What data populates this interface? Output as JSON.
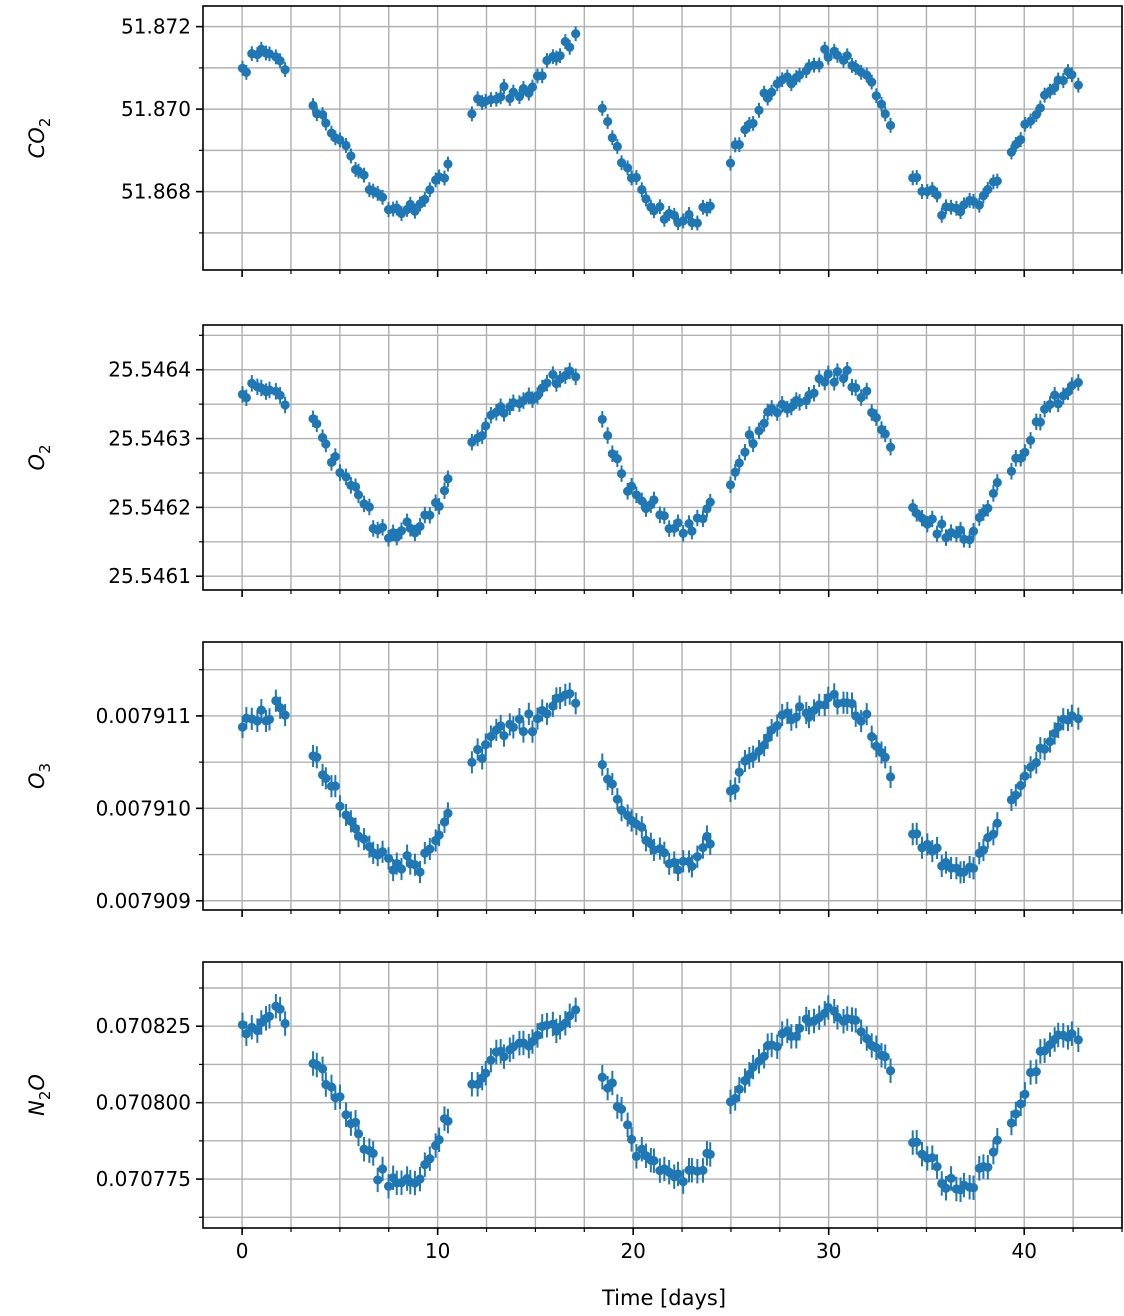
{
  "chart_data": {
    "type": "scatter",
    "style": {
      "marker_color": "#1f77b4",
      "grid": true,
      "grid_color": "#b0b0b0",
      "error_bars": true
    },
    "x_axis": {
      "label": "Time [days]",
      "range": [
        -2,
        45
      ],
      "ticks": [
        0,
        10,
        20,
        30,
        40
      ],
      "tick_labels": [
        "0",
        "10",
        "20",
        "30",
        "40"
      ],
      "shared": true
    },
    "panels": [
      {
        "name": "CO2",
        "ylabel_main": "CO",
        "ylabel_sub": "2",
        "ylabel_tail": "",
        "ylim": [
          51.8661,
          51.8725
        ],
        "yticks": [
          51.868,
          51.87,
          51.872
        ],
        "ytick_labels": [
          "51.868",
          "51.870",
          "51.872"
        ],
        "mean": 51.8696,
        "amplitude": 0.0022,
        "err": 0.00018,
        "noise": 0.00035,
        "points": [
          [
            0,
            51.8711
          ],
          [
            1,
            51.8714
          ],
          [
            2,
            51.8712
          ],
          [
            3,
            51.8705
          ],
          [
            4,
            51.8698
          ],
          [
            5,
            51.8692
          ],
          [
            6,
            51.8684
          ],
          [
            7,
            51.8678
          ],
          [
            8,
            51.8676
          ],
          [
            9,
            51.8676
          ],
          [
            10,
            51.8682
          ],
          [
            11,
            51.8692
          ],
          [
            12,
            51.87
          ],
          [
            13,
            51.8703
          ],
          [
            14,
            51.8704
          ],
          [
            15,
            51.8707
          ],
          [
            16,
            51.8714
          ],
          [
            17,
            51.8717
          ],
          [
            18,
            51.8708
          ],
          [
            19,
            51.8692
          ],
          [
            20,
            51.8682
          ],
          [
            21,
            51.8677
          ],
          [
            22,
            51.8673
          ],
          [
            23,
            51.8673
          ],
          [
            24,
            51.8678
          ],
          [
            25,
            51.8688
          ],
          [
            26,
            51.8697
          ],
          [
            27,
            51.8704
          ],
          [
            28,
            51.8707
          ],
          [
            29,
            51.871
          ],
          [
            30,
            51.8713
          ],
          [
            31,
            51.8711
          ],
          [
            32,
            51.8707
          ],
          [
            33,
            51.8699
          ],
          [
            34,
            51.8684
          ],
          [
            35,
            51.868
          ],
          [
            36,
            51.8676
          ],
          [
            37,
            51.8675
          ],
          [
            38,
            51.868
          ],
          [
            39,
            51.8687
          ],
          [
            40,
            51.8695
          ],
          [
            41,
            51.8703
          ],
          [
            42,
            51.8708
          ],
          [
            43,
            51.8708
          ]
        ]
      },
      {
        "name": "O2",
        "ylabel_main": "O",
        "ylabel_sub": "2",
        "ylabel_tail": "",
        "ylim": [
          25.54608,
          25.546465
        ],
        "yticks": [
          25.5461,
          25.5462,
          25.5463,
          25.5464
        ],
        "ytick_labels": [
          "25.5461",
          "25.5462",
          "25.5463",
          "25.5464"
        ],
        "mean": 25.54628,
        "amplitude": 0.00012,
        "err": 1.2e-05,
        "noise": 2e-05,
        "points": [
          [
            0,
            25.54637
          ],
          [
            1,
            25.54638
          ],
          [
            2,
            25.54636
          ],
          [
            3,
            25.54635
          ],
          [
            4,
            25.54631
          ],
          [
            5,
            25.54625
          ],
          [
            6,
            25.54622
          ],
          [
            7,
            25.54617
          ],
          [
            8,
            25.54616
          ],
          [
            9,
            25.54617
          ],
          [
            10,
            25.5462
          ],
          [
            11,
            25.54627
          ],
          [
            12,
            25.5463
          ],
          [
            13,
            25.54634
          ],
          [
            14,
            25.54635
          ],
          [
            15,
            25.54636
          ],
          [
            16,
            25.54639
          ],
          [
            17,
            25.54639
          ],
          [
            18,
            25.54636
          ],
          [
            19,
            25.54628
          ],
          [
            20,
            25.54622
          ],
          [
            21,
            25.5462
          ],
          [
            22,
            25.54617
          ],
          [
            23,
            25.54617
          ],
          [
            24,
            25.5462
          ],
          [
            25,
            25.54624
          ],
          [
            26,
            25.5463
          ],
          [
            27,
            25.54634
          ],
          [
            28,
            25.54635
          ],
          [
            29,
            25.54636
          ],
          [
            30,
            25.54639
          ],
          [
            31,
            25.54639
          ],
          [
            32,
            25.54636
          ],
          [
            33,
            25.5463
          ],
          [
            34,
            25.54622
          ],
          [
            35,
            25.54618
          ],
          [
            36,
            25.54616
          ],
          [
            37,
            25.54615
          ],
          [
            38,
            25.5462
          ],
          [
            39,
            25.54625
          ],
          [
            40,
            25.54628
          ],
          [
            41,
            25.54634
          ],
          [
            42,
            25.54636
          ],
          [
            43,
            25.54638
          ]
        ]
      },
      {
        "name": "O3",
        "ylabel_main": "O",
        "ylabel_sub": "3",
        "ylabel_tail": "",
        "ylim": [
          0.0079089,
          0.0079118
        ],
        "yticks": [
          0.007909,
          0.00791,
          0.007911
        ],
        "ytick_labels": [
          "0.007909",
          "0.007910",
          "0.007911"
        ],
        "mean": 0.0079102,
        "amplitude": 1.2e-06,
        "err": 1.2e-07,
        "noise": 1.6e-07,
        "points": [
          [
            0,
            0.0079109
          ],
          [
            1,
            0.007911
          ],
          [
            2,
            0.0079111
          ],
          [
            3,
            0.0079107
          ],
          [
            4,
            0.0079104
          ],
          [
            5,
            0.0079101
          ],
          [
            6,
            0.0079097
          ],
          [
            7,
            0.0079095
          ],
          [
            8,
            0.0079094
          ],
          [
            9,
            0.0079094
          ],
          [
            10,
            0.0079097
          ],
          [
            11,
            0.0079102
          ],
          [
            12,
            0.0079106
          ],
          [
            13,
            0.0079108
          ],
          [
            14,
            0.0079109
          ],
          [
            15,
            0.0079109
          ],
          [
            16,
            0.0079112
          ],
          [
            17,
            0.0079112
          ],
          [
            18,
            0.0079108
          ],
          [
            19,
            0.0079102
          ],
          [
            20,
            0.0079098
          ],
          [
            21,
            0.0079096
          ],
          [
            22,
            0.0079094
          ],
          [
            23,
            0.0079094
          ],
          [
            24,
            0.0079097
          ],
          [
            25,
            0.0079102
          ],
          [
            26,
            0.0079106
          ],
          [
            27,
            0.0079108
          ],
          [
            28,
            0.007911
          ],
          [
            29,
            0.007911
          ],
          [
            30,
            0.0079112
          ],
          [
            31,
            0.0079111
          ],
          [
            32,
            0.0079109
          ],
          [
            33,
            0.0079105
          ],
          [
            34,
            0.0079098
          ],
          [
            35,
            0.0079096
          ],
          [
            36,
            0.0079094
          ],
          [
            37,
            0.0079093
          ],
          [
            38,
            0.0079096
          ],
          [
            39,
            0.0079099
          ],
          [
            40,
            0.0079103
          ],
          [
            41,
            0.0079107
          ],
          [
            42,
            0.007911
          ],
          [
            43,
            0.007911
          ]
        ]
      },
      {
        "name": "N2O",
        "ylabel_main": "N",
        "ylabel_sub": "2",
        "ylabel_tail": "O",
        "ylim": [
          0.070759,
          0.070846
        ],
        "yticks": [
          0.070775,
          0.0708,
          0.070825
        ],
        "ytick_labels": [
          "0.070775",
          "0.070800",
          "0.070825"
        ],
        "mean": 0.0708005,
        "amplitude": 2.6e-05,
        "err": 4e-06,
        "noise": 5e-06,
        "points": [
          [
            0,
            0.070823
          ],
          [
            1,
            0.070825
          ],
          [
            2,
            0.07083
          ],
          [
            3,
            0.070818
          ],
          [
            4,
            0.070812
          ],
          [
            5,
            0.0708
          ],
          [
            6,
            0.070788
          ],
          [
            7,
            0.070777
          ],
          [
            8,
            0.070774
          ],
          [
            9,
            0.070775
          ],
          [
            10,
            0.070787
          ],
          [
            11,
            0.0708
          ],
          [
            12,
            0.070806
          ],
          [
            13,
            0.070815
          ],
          [
            14,
            0.070818
          ],
          [
            15,
            0.070822
          ],
          [
            16,
            0.070826
          ],
          [
            17,
            0.070828
          ],
          [
            18,
            0.070815
          ],
          [
            19,
            0.070803
          ],
          [
            20,
            0.070785
          ],
          [
            21,
            0.070781
          ],
          [
            22,
            0.070776
          ],
          [
            23,
            0.070776
          ],
          [
            24,
            0.070782
          ],
          [
            25,
            0.0708
          ],
          [
            26,
            0.07081
          ],
          [
            27,
            0.070818
          ],
          [
            28,
            0.070822
          ],
          [
            29,
            0.070824
          ],
          [
            30,
            0.07083
          ],
          [
            31,
            0.070827
          ],
          [
            32,
            0.070823
          ],
          [
            33,
            0.070812
          ],
          [
            34,
            0.07079
          ],
          [
            35,
            0.070782
          ],
          [
            36,
            0.070774
          ],
          [
            37,
            0.07077
          ],
          [
            38,
            0.070778
          ],
          [
            39,
            0.07079
          ],
          [
            40,
            0.070803
          ],
          [
            41,
            0.070817
          ],
          [
            42,
            0.070822
          ],
          [
            43,
            0.07082
          ]
        ]
      }
    ]
  }
}
